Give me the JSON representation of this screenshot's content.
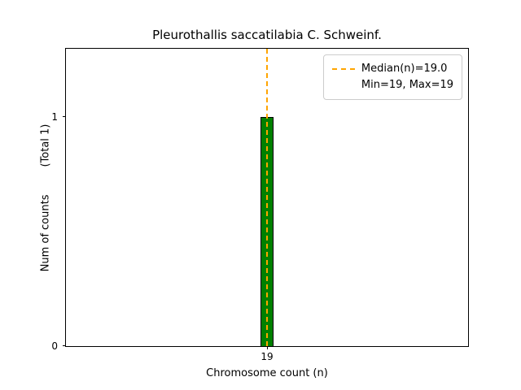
{
  "figure": {
    "title": "Pleurothallis saccatilabia C. Schweinf.",
    "xlabel": "Chromosome count (n)",
    "ylabel": "Num of counts",
    "ylabel_total": "(Total 1)"
  },
  "axes": {
    "ytick_0": "0",
    "ytick_1": "1",
    "xtick_19": "19"
  },
  "legend": {
    "median_label": "Median(n)=19.0",
    "minmax_label": "Min=19, Max=19"
  },
  "colors": {
    "bar_fill": "#008000",
    "bar_edge": "#000000",
    "median_line": "#ffa500"
  },
  "chart_data": {
    "type": "bar",
    "title": "Pleurothallis saccatilabia C. Schweinf.",
    "xlabel": "Chromosome count (n)",
    "ylabel": "Num of counts (Total 1)",
    "categories": [
      19
    ],
    "values": [
      1
    ],
    "total": 1,
    "median": 19.0,
    "min": 19,
    "max": 19,
    "ylim": [
      0,
      1.3
    ],
    "yticks": [
      0,
      1
    ],
    "xticks": [
      19
    ],
    "grid": false,
    "legend_position": "upper right"
  }
}
